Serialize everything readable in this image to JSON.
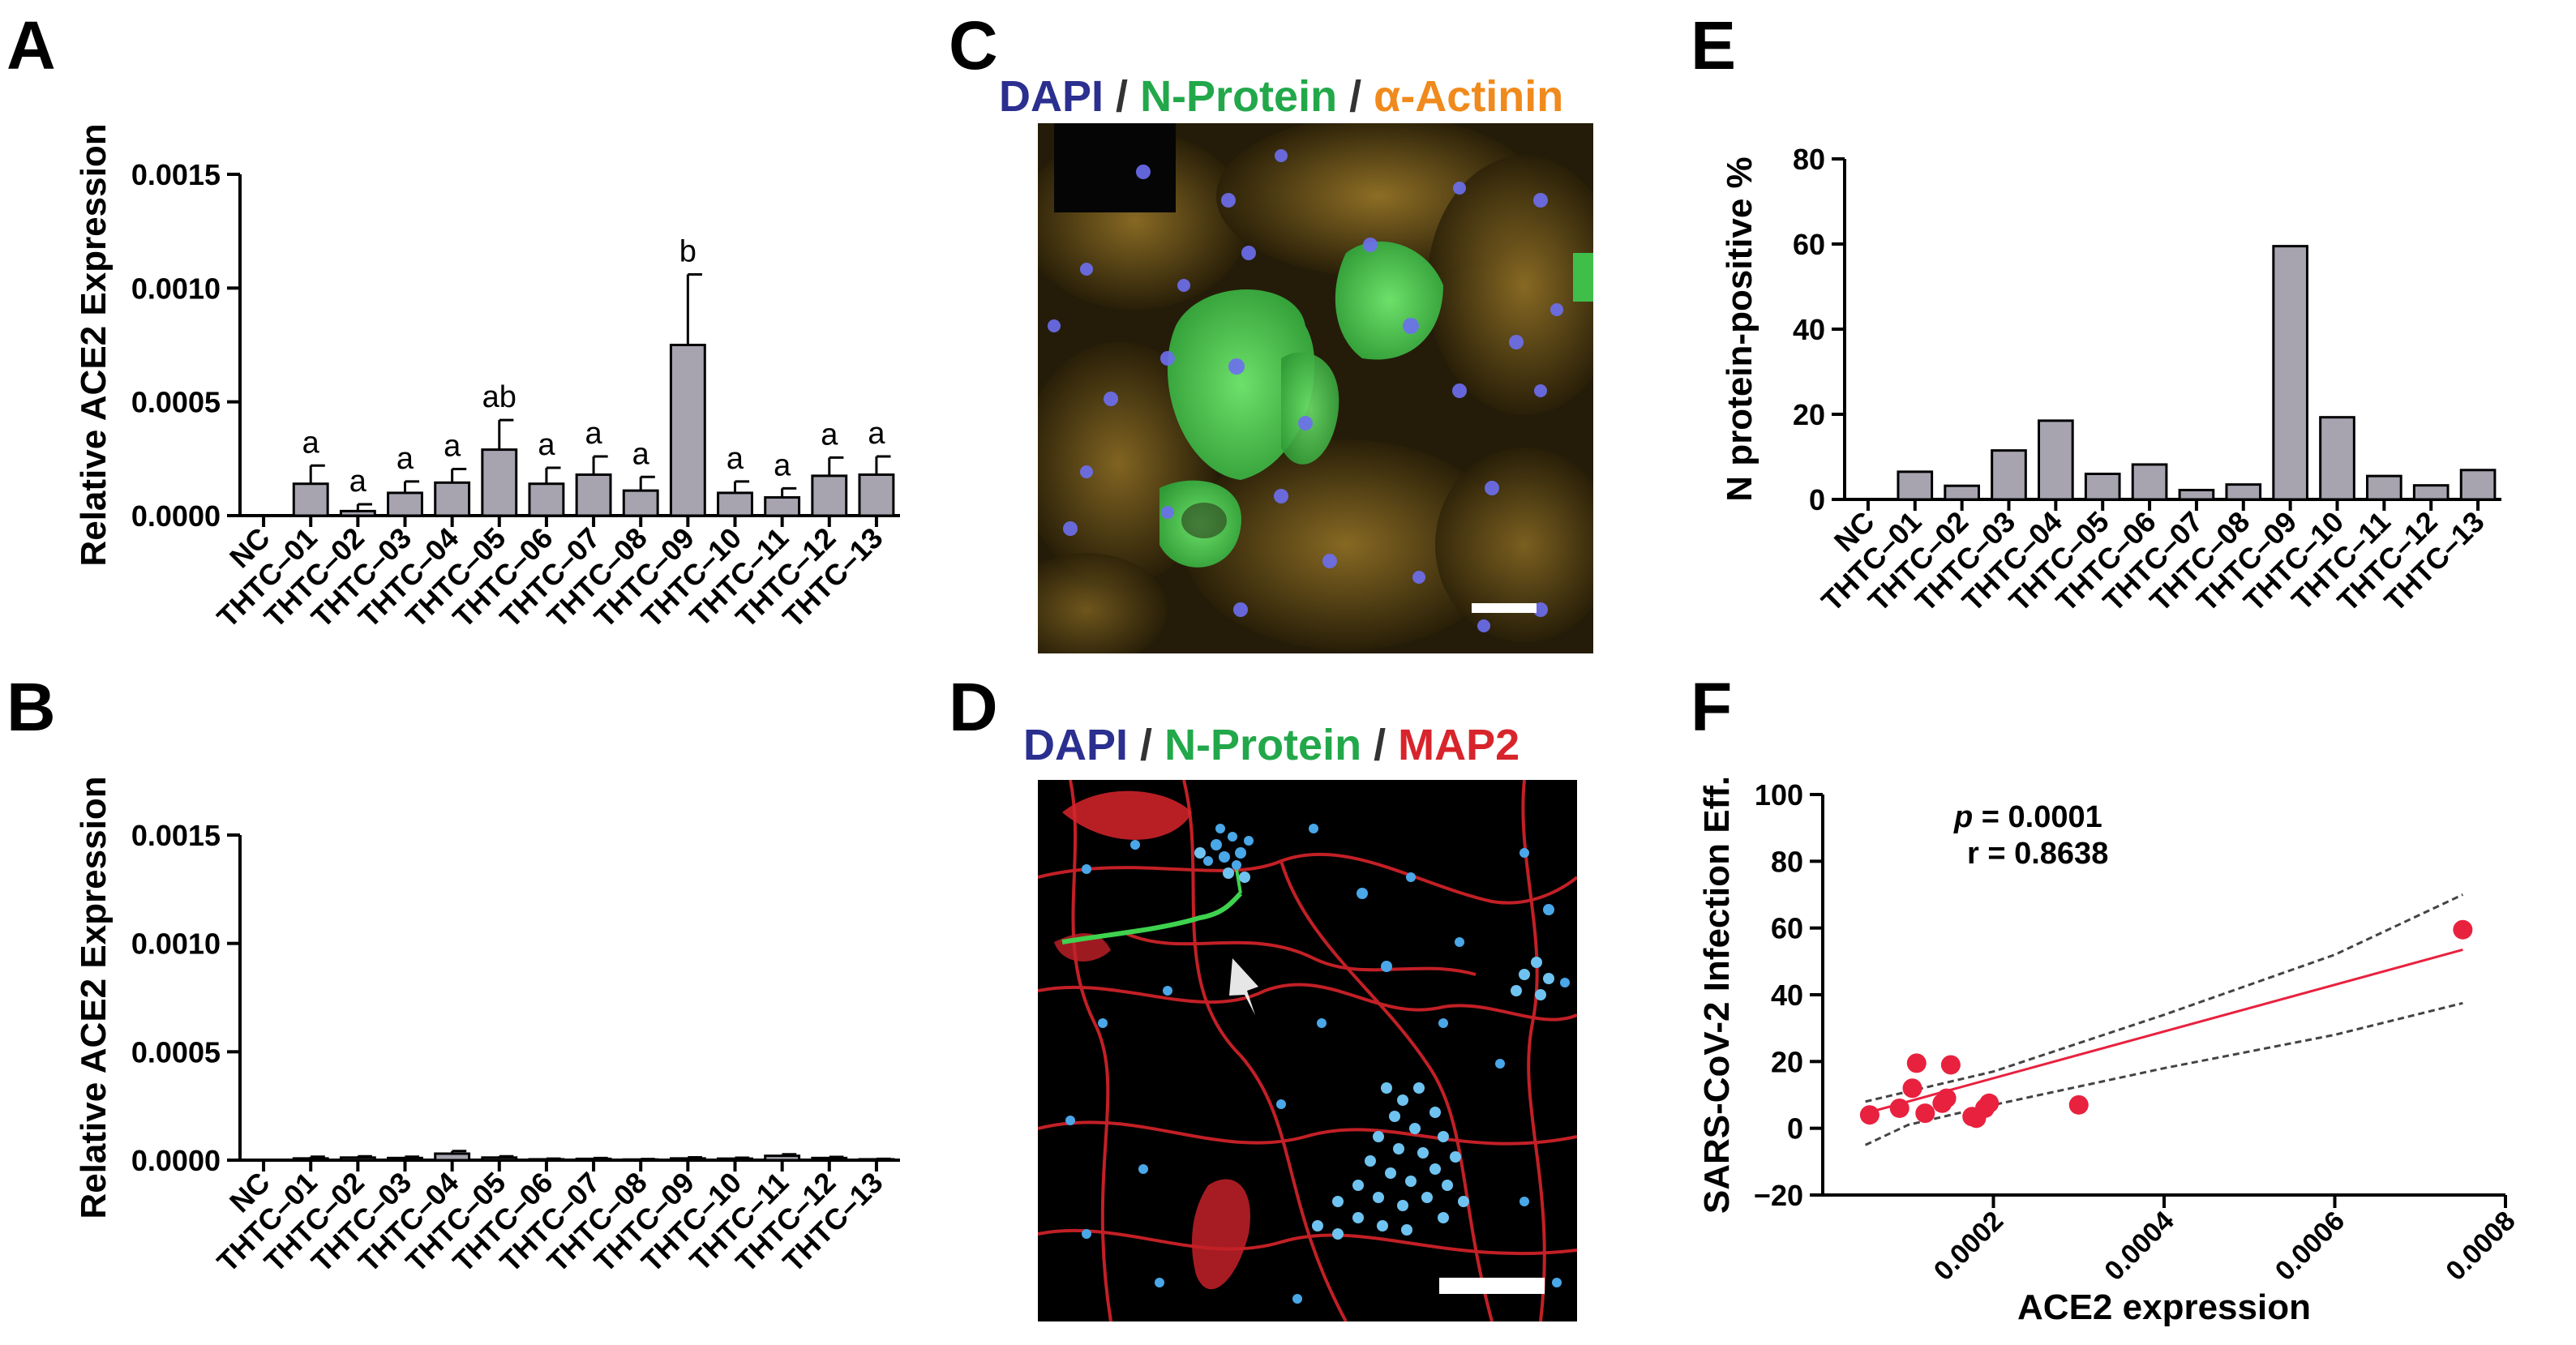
{
  "panels": {
    "A": "A",
    "B": "B",
    "C": "C",
    "D": "D",
    "E": "E",
    "F": "F"
  },
  "colors": {
    "bar_fill": "#a7a4b0",
    "dapi": "#2b2f8f",
    "n_protein": "#22a84a",
    "alpha_actinin": "#f08a1c",
    "map2": "#d8242b",
    "scatter_point": "#e8213f",
    "fit_line": "#e8213f",
    "ci_line": "#444444"
  },
  "micrographs": {
    "C": {
      "stain1": "DAPI",
      "sep1": "/",
      "stain2": "N-Protein",
      "sep2": "/",
      "stain3": "α-Actinin"
    },
    "D": {
      "stain1": "DAPI",
      "sep1": "/",
      "stain2": "N-Protein",
      "sep2": "/",
      "stain3": "MAP2"
    }
  },
  "chart_data": [
    {
      "id": "A",
      "type": "bar",
      "categories": [
        "NC",
        "THTC–01",
        "THTC–02",
        "THTC–03",
        "THTC–04",
        "THTC–05",
        "THTC–06",
        "THTC–07",
        "THTC–08",
        "THTC–09",
        "THTC–10",
        "THTC–11",
        "THTC–12",
        "THTC–13"
      ],
      "values": [
        0,
        0.00014,
        2e-05,
        0.0001,
        0.000145,
        0.00029,
        0.00014,
        0.00018,
        0.00011,
        0.00075,
        0.0001,
        8e-05,
        0.000175,
        0.00018
      ],
      "errors": [
        0,
        8e-05,
        3e-05,
        5e-05,
        6e-05,
        0.00013,
        7e-05,
        8e-05,
        6e-05,
        0.00031,
        5e-05,
        4e-05,
        8e-05,
        8e-05
      ],
      "annotations": [
        "",
        "a",
        "a",
        "a",
        "a",
        "ab",
        "a",
        "a",
        "a",
        "b",
        "a",
        "a",
        "a",
        "a"
      ],
      "ylabel": "Relative ACE2 Expression",
      "ylim": [
        0,
        0.0015
      ],
      "yticks": [
        "0.0000",
        "0.0005",
        "0.0010",
        "0.0015"
      ],
      "ytick_values": [
        0,
        0.0005,
        0.001,
        0.0015
      ]
    },
    {
      "id": "B",
      "type": "bar",
      "categories": [
        "NC",
        "THTC–01",
        "THTC–02",
        "THTC–03",
        "THTC–04",
        "THTC–05",
        "THTC–06",
        "THTC–07",
        "THTC–08",
        "THTC–09",
        "THTC–10",
        "THTC–11",
        "THTC–12",
        "THTC–13"
      ],
      "values": [
        0,
        8e-06,
        1.2e-05,
        1e-05,
        3e-05,
        1.2e-05,
        4e-06,
        6e-06,
        3e-06,
        8e-06,
        7e-06,
        2e-05,
        1e-05,
        4e-06
      ],
      "errors": [
        0,
        8e-06,
        6e-06,
        6e-06,
        1.2e-05,
        6e-06,
        3e-06,
        4e-06,
        2e-06,
        5e-06,
        4e-06,
        7e-06,
        5e-06,
        2e-06
      ],
      "ylabel": "Relative ACE2 Expression",
      "ylim": [
        0,
        0.0015
      ],
      "yticks": [
        "0.0000",
        "0.0005",
        "0.0010",
        "0.0015"
      ],
      "ytick_values": [
        0,
        0.0005,
        0.001,
        0.0015
      ]
    },
    {
      "id": "E",
      "type": "bar",
      "categories": [
        "NC",
        "THTC–01",
        "THTC–02",
        "THTC–03",
        "THTC–04",
        "THTC–05",
        "THTC–06",
        "THTC–07",
        "THTC–08",
        "THTC–09",
        "THTC–10",
        "THTC–11",
        "THTC–12",
        "THTC–13"
      ],
      "values": [
        0,
        6.5,
        3.2,
        11.5,
        18.5,
        6,
        8.2,
        2.2,
        3.5,
        59.5,
        19.3,
        5.5,
        3.3,
        6.9
      ],
      "ylabel": "N protein-positive %",
      "ylim": [
        0,
        80
      ],
      "yticks": [
        "0",
        "20",
        "40",
        "60",
        "80"
      ],
      "ytick_values": [
        0,
        20,
        40,
        60,
        80
      ]
    },
    {
      "id": "F",
      "type": "scatter",
      "points": [
        [
          5.5e-05,
          4
        ],
        [
          9e-05,
          6
        ],
        [
          0.000105,
          12
        ],
        [
          0.00011,
          19.5
        ],
        [
          0.00012,
          4.5
        ],
        [
          0.00014,
          7.5
        ],
        [
          0.000145,
          9
        ],
        [
          0.00015,
          19
        ],
        [
          0.000175,
          3.5
        ],
        [
          0.00018,
          3
        ],
        [
          0.00019,
          6
        ],
        [
          0.000195,
          7.5
        ],
        [
          0.0003,
          7
        ],
        [
          0.00075,
          59.5
        ]
      ],
      "fit_line": [
        [
          5e-05,
          4.5
        ],
        [
          0.00075,
          53.5
        ]
      ],
      "ci_upper": [
        [
          5e-05,
          8
        ],
        [
          0.0002,
          17
        ],
        [
          0.0004,
          34
        ],
        [
          0.0006,
          52
        ],
        [
          0.00075,
          70
        ]
      ],
      "ci_lower": [
        [
          5e-05,
          -5
        ],
        [
          0.0001,
          1
        ],
        [
          0.0002,
          7
        ],
        [
          0.0004,
          18
        ],
        [
          0.0006,
          28
        ],
        [
          0.00075,
          37.5
        ]
      ],
      "xlabel": "ACE2 expression",
      "ylabel": "SARS-CoV-2 Infection Eff.",
      "xlim": [
        0,
        0.0008
      ],
      "ylim": [
        -20,
        100
      ],
      "xticks": [
        "0.0002",
        "0.0004",
        "0.0006",
        "0.0008"
      ],
      "xtick_values": [
        0.0002,
        0.0004,
        0.0006,
        0.0008
      ],
      "yticks": [
        "−20",
        "0",
        "20",
        "40",
        "60",
        "80",
        "100"
      ],
      "ytick_values": [
        -20,
        0,
        20,
        40,
        60,
        80,
        100
      ],
      "stats": {
        "p_label": "p",
        "p_value": " = 0.0001",
        "r_text": "r = 0.8638"
      }
    }
  ]
}
